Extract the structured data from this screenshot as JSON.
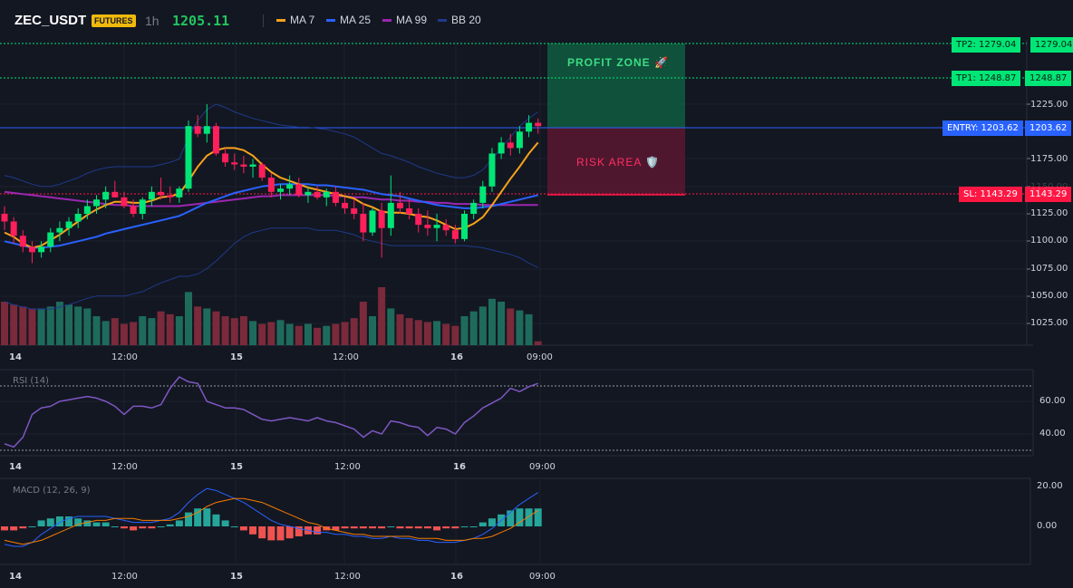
{
  "header": {
    "symbol": "ZEC_USDT",
    "badge": "FUTURES",
    "timeframe": "1h",
    "price": "1205.11",
    "legend": [
      {
        "name": "MA 7",
        "color": "#f7a21b"
      },
      {
        "name": "MA 25",
        "color": "#2962ff"
      },
      {
        "name": "MA 99",
        "color": "#9c27b0"
      },
      {
        "name": "BB 20",
        "color": "#1e3a8a"
      }
    ]
  },
  "main_chart": {
    "y_ticks": [
      "1225.00",
      "1175.00",
      "1150.00",
      "1125.00",
      "1100.00",
      "1075.00",
      "1050.00",
      "1025.00"
    ],
    "x_ticks": [
      "14",
      "12:00",
      "15",
      "12:00",
      "16",
      "09:00"
    ]
  },
  "trade": {
    "profit_zone_label": "PROFIT ZONE 🚀",
    "risk_area_label": "RISK AREA 🛡️",
    "tp2_tag": "TP2: 1279.04",
    "tp2_price": "1279.04",
    "tp1_tag": "TP1: 1248.87",
    "tp1_price": "1248.87",
    "entry_tag": "ENTRY: 1203.62",
    "entry_price": "1203.62",
    "sl_tag": "SL: 1143.29",
    "sl_price": "1143.29",
    "colors": {
      "tp": "#00e676",
      "entry": "#2962ff",
      "sl": "#ff1744"
    }
  },
  "rsi_panel": {
    "title": "RSI (14)",
    "y_ticks": [
      "60.00",
      "40.00"
    ],
    "x_ticks": [
      "14",
      "12:00",
      "15",
      "12:00",
      "16",
      "09:00"
    ]
  },
  "macd_panel": {
    "title": "MACD (12, 26, 9)",
    "y_ticks": [
      "20.00",
      "0.00"
    ],
    "x_ticks": [
      "14",
      "12:00",
      "15",
      "12:00",
      "16",
      "09:00"
    ]
  },
  "chart_data": {
    "type": "candlestick",
    "y_range": [
      1000,
      1290
    ],
    "candles": [
      [
        1125,
        1132,
        1110,
        1118
      ],
      [
        1118,
        1122,
        1098,
        1105
      ],
      [
        1105,
        1110,
        1090,
        1095
      ],
      [
        1095,
        1100,
        1080,
        1090
      ],
      [
        1090,
        1100,
        1085,
        1095
      ],
      [
        1095,
        1112,
        1090,
        1108
      ],
      [
        1108,
        1118,
        1100,
        1112
      ],
      [
        1112,
        1122,
        1105,
        1118
      ],
      [
        1118,
        1130,
        1112,
        1125
      ],
      [
        1125,
        1138,
        1120,
        1132
      ],
      [
        1132,
        1142,
        1125,
        1138
      ],
      [
        1138,
        1150,
        1130,
        1145
      ],
      [
        1145,
        1155,
        1140,
        1140
      ],
      [
        1140,
        1145,
        1130,
        1132
      ],
      [
        1132,
        1138,
        1122,
        1125
      ],
      [
        1125,
        1140,
        1120,
        1138
      ],
      [
        1138,
        1150,
        1132,
        1145
      ],
      [
        1145,
        1158,
        1138,
        1142
      ],
      [
        1142,
        1150,
        1135,
        1140
      ],
      [
        1140,
        1150,
        1135,
        1148
      ],
      [
        1148,
        1210,
        1145,
        1205
      ],
      [
        1205,
        1215,
        1195,
        1198
      ],
      [
        1198,
        1225,
        1190,
        1205
      ],
      [
        1205,
        1208,
        1178,
        1180
      ],
      [
        1180,
        1185,
        1168,
        1172
      ],
      [
        1172,
        1180,
        1165,
        1170
      ],
      [
        1170,
        1178,
        1162,
        1168
      ],
      [
        1168,
        1175,
        1158,
        1170
      ],
      [
        1170,
        1172,
        1155,
        1158
      ],
      [
        1158,
        1162,
        1140,
        1145
      ],
      [
        1145,
        1152,
        1138,
        1148
      ],
      [
        1148,
        1160,
        1142,
        1152
      ],
      [
        1152,
        1158,
        1140,
        1142
      ],
      [
        1142,
        1150,
        1135,
        1145
      ],
      [
        1145,
        1150,
        1138,
        1140
      ],
      [
        1140,
        1148,
        1132,
        1145
      ],
      [
        1145,
        1150,
        1132,
        1135
      ],
      [
        1135,
        1140,
        1125,
        1130
      ],
      [
        1130,
        1138,
        1120,
        1125
      ],
      [
        1125,
        1135,
        1100,
        1108
      ],
      [
        1108,
        1130,
        1105,
        1128
      ],
      [
        1128,
        1135,
        1085,
        1112
      ],
      [
        1112,
        1160,
        1105,
        1135
      ],
      [
        1135,
        1145,
        1125,
        1130
      ],
      [
        1130,
        1138,
        1120,
        1125
      ],
      [
        1125,
        1130,
        1108,
        1115
      ],
      [
        1115,
        1128,
        1105,
        1112
      ],
      [
        1112,
        1125,
        1100,
        1115
      ],
      [
        1115,
        1120,
        1105,
        1110
      ],
      [
        1110,
        1115,
        1098,
        1102
      ],
      [
        1102,
        1128,
        1100,
        1125
      ],
      [
        1125,
        1138,
        1120,
        1135
      ],
      [
        1135,
        1155,
        1130,
        1150
      ],
      [
        1150,
        1185,
        1145,
        1180
      ],
      [
        1180,
        1195,
        1175,
        1190
      ],
      [
        1190,
        1198,
        1178,
        1185
      ],
      [
        1185,
        1205,
        1180,
        1200
      ],
      [
        1200,
        1215,
        1195,
        1208
      ],
      [
        1208,
        1212,
        1198,
        1205
      ]
    ],
    "volumes": [
      45,
      42,
      40,
      38,
      38,
      40,
      45,
      42,
      40,
      38,
      30,
      25,
      28,
      22,
      24,
      30,
      28,
      35,
      32,
      30,
      55,
      40,
      38,
      35,
      30,
      28,
      30,
      25,
      22,
      24,
      26,
      22,
      20,
      22,
      18,
      20,
      22,
      24,
      28,
      45,
      30,
      60,
      38,
      32,
      28,
      26,
      24,
      25,
      22,
      20,
      30,
      35,
      40,
      48,
      45,
      38,
      36,
      32,
      4
    ],
    "ma7": [
      1108,
      1104,
      1098,
      1094,
      1096,
      1101,
      1106,
      1112,
      1118,
      1124,
      1129,
      1133,
      1136,
      1136,
      1135,
      1135,
      1137,
      1140,
      1141,
      1143,
      1155,
      1168,
      1178,
      1183,
      1185,
      1185,
      1183,
      1178,
      1170,
      1163,
      1158,
      1155,
      1152,
      1149,
      1147,
      1145,
      1143,
      1141,
      1139,
      1134,
      1131,
      1127,
      1126,
      1126,
      1125,
      1123,
      1122,
      1119,
      1115,
      1111,
      1112,
      1116,
      1122,
      1133,
      1145,
      1157,
      1168,
      1180,
      1190
    ],
    "ma25": [
      1100,
      1098,
      1096,
      1094,
      1094,
      1095,
      1096,
      1098,
      1100,
      1102,
      1104,
      1107,
      1109,
      1111,
      1113,
      1115,
      1117,
      1119,
      1121,
      1123,
      1127,
      1131,
      1135,
      1138,
      1141,
      1144,
      1146,
      1148,
      1150,
      1151,
      1152,
      1152,
      1152,
      1152,
      1151,
      1151,
      1150,
      1149,
      1148,
      1147,
      1145,
      1143,
      1142,
      1141,
      1139,
      1137,
      1135,
      1133,
      1132,
      1131,
      1130,
      1130,
      1131,
      1132,
      1134,
      1136,
      1138,
      1140,
      1142
    ],
    "ma99": [
      1145,
      1144,
      1143,
      1142,
      1141,
      1140,
      1139,
      1138,
      1137,
      1136,
      1135,
      1134,
      1133,
      1133,
      1132,
      1132,
      1132,
      1132,
      1132,
      1132,
      1133,
      1134,
      1135,
      1136,
      1137,
      1138,
      1139,
      1140,
      1141,
      1141,
      1142,
      1142,
      1142,
      1142,
      1142,
      1142,
      1141,
      1141,
      1140,
      1140,
      1139,
      1138,
      1138,
      1137,
      1137,
      1136,
      1136,
      1135,
      1135,
      1134,
      1134,
      1134,
      1133,
      1133,
      1133,
      1133,
      1133,
      1133,
      1133
    ],
    "bb_upper": [
      1160,
      1158,
      1155,
      1152,
      1150,
      1150,
      1152,
      1155,
      1158,
      1162,
      1165,
      1167,
      1168,
      1168,
      1168,
      1168,
      1168,
      1170,
      1172,
      1175,
      1195,
      1210,
      1220,
      1225,
      1222,
      1218,
      1215,
      1212,
      1210,
      1208,
      1206,
      1205,
      1204,
      1204,
      1203,
      1202,
      1200,
      1198,
      1195,
      1190,
      1185,
      1180,
      1178,
      1175,
      1172,
      1168,
      1165,
      1162,
      1160,
      1158,
      1158,
      1160,
      1165,
      1175,
      1185,
      1195,
      1205,
      1212,
      1218
    ],
    "bb_lower": [
      1045,
      1042,
      1040,
      1038,
      1038,
      1038,
      1040,
      1042,
      1045,
      1048,
      1050,
      1050,
      1050,
      1050,
      1052,
      1054,
      1058,
      1062,
      1065,
      1068,
      1068,
      1070,
      1075,
      1082,
      1090,
      1098,
      1104,
      1108,
      1110,
      1112,
      1112,
      1112,
      1112,
      1112,
      1110,
      1110,
      1110,
      1108,
      1106,
      1102,
      1100,
      1098,
      1096,
      1096,
      1096,
      1096,
      1096,
      1096,
      1096,
      1096,
      1096,
      1095,
      1094,
      1092,
      1090,
      1088,
      1085,
      1080,
      1076
    ],
    "rsi": [
      34,
      32,
      38,
      52,
      56,
      57,
      60,
      61,
      62,
      63,
      62,
      60,
      57,
      52,
      57,
      57,
      56,
      58,
      68,
      75,
      72,
      71,
      60,
      58,
      56,
      56,
      55,
      52,
      49,
      48,
      49,
      50,
      49,
      48,
      50,
      48,
      47,
      45,
      43,
      38,
      42,
      40,
      48,
      47,
      45,
      44,
      39,
      44,
      43,
      40,
      47,
      51,
      56,
      59,
      62,
      68,
      66,
      69,
      71
    ],
    "rsi_range": [
      25,
      80
    ],
    "macd": [
      -9,
      -10,
      -10,
      -8,
      -4,
      -1,
      2,
      4,
      5,
      5,
      5,
      5,
      4,
      3,
      2,
      2,
      2,
      3,
      4,
      7,
      12,
      16,
      19,
      18,
      16,
      14,
      12,
      9,
      6,
      3,
      1,
      0,
      -1,
      -2,
      -3,
      -3,
      -4,
      -4,
      -5,
      -5,
      -6,
      -6,
      -5,
      -6,
      -6,
      -7,
      -7,
      -8,
      -8,
      -8,
      -7,
      -6,
      -4,
      -1,
      3,
      7,
      11,
      14,
      17
    ],
    "signal": [
      -7,
      -8,
      -9,
      -8,
      -7,
      -5,
      -3,
      -1,
      1,
      2,
      3,
      3,
      4,
      4,
      4,
      3,
      3,
      3,
      3,
      4,
      5,
      7,
      10,
      12,
      13,
      14,
      14,
      13,
      12,
      10,
      8,
      6,
      4,
      2,
      1,
      -1,
      -2,
      -3,
      -4,
      -4,
      -5,
      -5,
      -5,
      -5,
      -5,
      -6,
      -6,
      -6,
      -7,
      -7,
      -7,
      -6,
      -6,
      -5,
      -3,
      -1,
      2,
      5,
      8
    ],
    "histogram": [
      -2,
      -2,
      -1,
      0,
      3,
      4,
      5,
      5,
      4,
      3,
      2,
      2,
      0,
      -1,
      -2,
      -1,
      -1,
      0,
      1,
      3,
      7,
      9,
      9,
      6,
      3,
      0,
      -2,
      -4,
      -6,
      -7,
      -7,
      -6,
      -5,
      -4,
      -4,
      -2,
      -2,
      -1,
      -1,
      -1,
      -1,
      -1,
      0,
      -1,
      -1,
      -1,
      -1,
      -2,
      -1,
      -1,
      0,
      0,
      2,
      4,
      6,
      8,
      9,
      9,
      9
    ],
    "macd_range": [
      -18,
      22
    ]
  }
}
